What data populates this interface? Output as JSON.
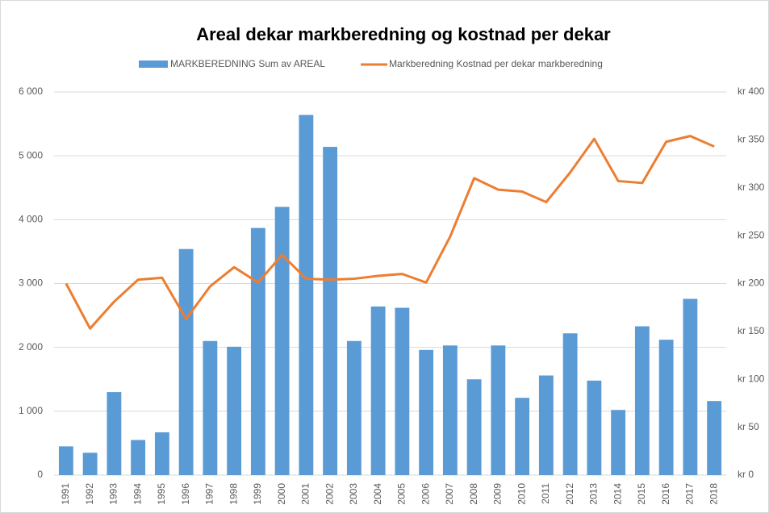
{
  "chart_data": {
    "type": "bar_line",
    "title": "Areal dekar markberedning og kostnad per dekar",
    "categories": [
      "1991",
      "1992",
      "1993",
      "1994",
      "1995",
      "1996",
      "1997",
      "1998",
      "1999",
      "2000",
      "2001",
      "2002",
      "2003",
      "2004",
      "2005",
      "2006",
      "2007",
      "2008",
      "2009",
      "2010",
      "2011",
      "2012",
      "2013",
      "2014",
      "2015",
      "2016",
      "2017",
      "2018"
    ],
    "series": [
      {
        "name": "MARKBEREDNING Sum av AREAL",
        "type": "bar",
        "color": "#5b9bd5",
        "values": [
          450,
          350,
          1300,
          550,
          670,
          3540,
          2100,
          2010,
          3870,
          4200,
          5640,
          5140,
          2100,
          2640,
          2620,
          1960,
          2030,
          1500,
          2030,
          1210,
          1560,
          2220,
          1480,
          1020,
          2330,
          2120,
          2760,
          1160
        ]
      },
      {
        "name": "Markberedning Kostnad per dekar markberedning",
        "type": "line",
        "axis": "y2",
        "color": "#ed7d31",
        "values": [
          200,
          153,
          181,
          204,
          206,
          163,
          197,
          217,
          201,
          230,
          205,
          204,
          205,
          208,
          210,
          201,
          249,
          310,
          298,
          296,
          285,
          316,
          351,
          307,
          305,
          348,
          354,
          343
        ]
      }
    ],
    "ylim": [
      0,
      6000
    ],
    "yticks": [
      0,
      {
        "value": 1000,
        "label": "1 000"
      },
      {
        "value": 2000,
        "label": "2 000"
      },
      {
        "value": 3000,
        "label": "3 000"
      },
      {
        "value": 4000,
        "label": "4 000"
      },
      {
        "value": 5000,
        "label": "5 000"
      },
      {
        "value": 6000,
        "label": "6 000"
      }
    ],
    "y2lim": [
      0,
      400
    ],
    "y2ticks": [
      {
        "value": 0,
        "label": "kr 0"
      },
      {
        "value": 50,
        "label": "kr 50"
      },
      {
        "value": 100,
        "label": "kr 100"
      },
      {
        "value": 150,
        "label": "kr 150"
      },
      {
        "value": 200,
        "label": "kr 200"
      },
      {
        "value": 250,
        "label": "kr 250"
      },
      {
        "value": 300,
        "label": "kr 300"
      },
      {
        "value": 350,
        "label": "kr 350"
      },
      {
        "value": 400,
        "label": "kr 400"
      }
    ],
    "grid": true,
    "legend": "top"
  }
}
